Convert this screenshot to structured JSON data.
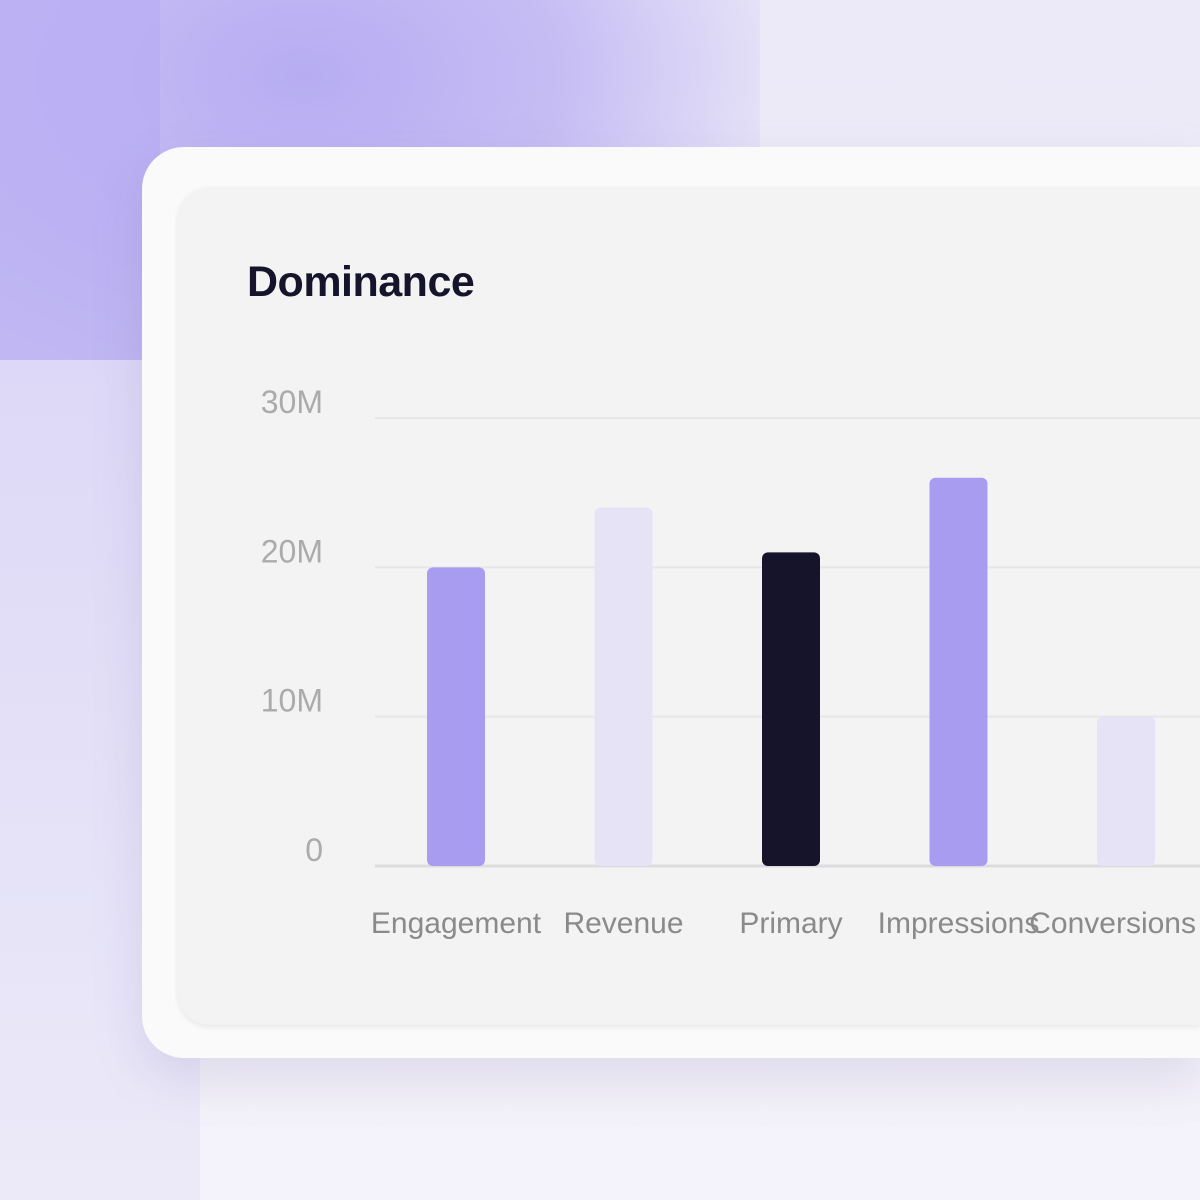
{
  "chart_data": {
    "type": "bar",
    "title": "Dominance",
    "categories": [
      "Engagement",
      "Revenue",
      "Primary",
      "Impressions",
      "Conversions"
    ],
    "values": [
      20,
      24,
      21,
      26,
      10
    ],
    "unit": "M",
    "ylim": [
      0,
      30
    ],
    "yticks": [
      0,
      10,
      20,
      30
    ],
    "ytick_labels": [
      "0",
      "10M",
      "20M",
      "30M"
    ],
    "grid": true,
    "colors": [
      "#a89cf0",
      "#e7e3f7",
      "#16142a",
      "#a89cf0",
      "#e7e3f7"
    ]
  }
}
